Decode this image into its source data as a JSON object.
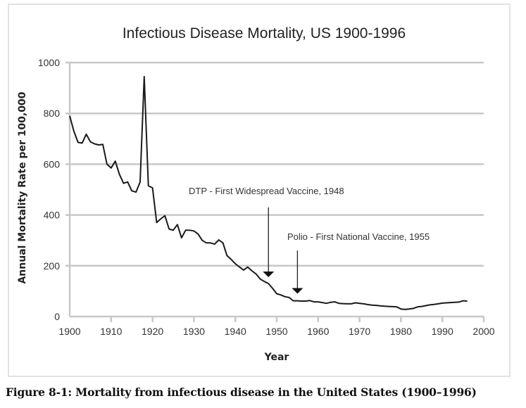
{
  "caption": "Figure 8-1: Mortality from infectious disease in the United States (1900–1996)",
  "chart_data": {
    "type": "line",
    "title": "Infectious Disease Mortality, US 1900-1996",
    "xlabel": "Year",
    "ylabel": "Annual Mortality Rate per 100,000",
    "xlim": [
      1900,
      2000
    ],
    "ylim": [
      0,
      1000
    ],
    "xticks": [
      1900,
      1910,
      1920,
      1930,
      1940,
      1950,
      1960,
      1970,
      1980,
      1990,
      2000
    ],
    "yticks": [
      0,
      200,
      400,
      600,
      800,
      1000
    ],
    "grid": "horizontal",
    "line_color": "#1a1a1a",
    "grid_color": "#c8c8c8",
    "series": [
      {
        "name": "Infectious disease mortality",
        "x": [
          1900,
          1901,
          1902,
          1903,
          1904,
          1905,
          1906,
          1907,
          1908,
          1909,
          1910,
          1911,
          1912,
          1913,
          1914,
          1915,
          1916,
          1917,
          1918,
          1919,
          1920,
          1921,
          1922,
          1923,
          1924,
          1925,
          1926,
          1927,
          1928,
          1929,
          1930,
          1931,
          1932,
          1933,
          1934,
          1935,
          1936,
          1937,
          1938,
          1939,
          1940,
          1941,
          1942,
          1943,
          1944,
          1945,
          1946,
          1947,
          1948,
          1949,
          1950,
          1951,
          1952,
          1953,
          1954,
          1955,
          1956,
          1957,
          1958,
          1959,
          1960,
          1961,
          1962,
          1963,
          1964,
          1965,
          1966,
          1967,
          1968,
          1969,
          1970,
          1971,
          1972,
          1973,
          1974,
          1975,
          1976,
          1977,
          1978,
          1979,
          1980,
          1981,
          1982,
          1983,
          1984,
          1985,
          1986,
          1987,
          1988,
          1989,
          1990,
          1991,
          1992,
          1993,
          1994,
          1995,
          1996
        ],
        "values": [
          790,
          730,
          686,
          683,
          718,
          688,
          680,
          676,
          678,
          600,
          585,
          612,
          560,
          525,
          530,
          495,
          490,
          530,
          945,
          515,
          507,
          370,
          385,
          397,
          345,
          340,
          362,
          310,
          340,
          340,
          337,
          325,
          300,
          290,
          290,
          285,
          302,
          290,
          240,
          225,
          208,
          195,
          183,
          195,
          180,
          168,
          148,
          138,
          130,
          111,
          90,
          85,
          78,
          75,
          62,
          62,
          61,
          61,
          63,
          58,
          58,
          55,
          52,
          56,
          58,
          52,
          51,
          50,
          50,
          54,
          52,
          50,
          47,
          45,
          44,
          42,
          41,
          40,
          39,
          38,
          30,
          28,
          30,
          32,
          38,
          40,
          43,
          46,
          48,
          50,
          53,
          54,
          55,
          56,
          57,
          62,
          61
        ]
      }
    ],
    "annotations": [
      {
        "text": "DTP - First Widespread Vaccine, 1948",
        "year": 1948,
        "arrow_top": 430,
        "arrow_bottom": 155
      },
      {
        "text": "Polio - First National Vaccine, 1955",
        "year": 1955,
        "arrow_top": 260,
        "arrow_bottom": 90
      }
    ]
  }
}
